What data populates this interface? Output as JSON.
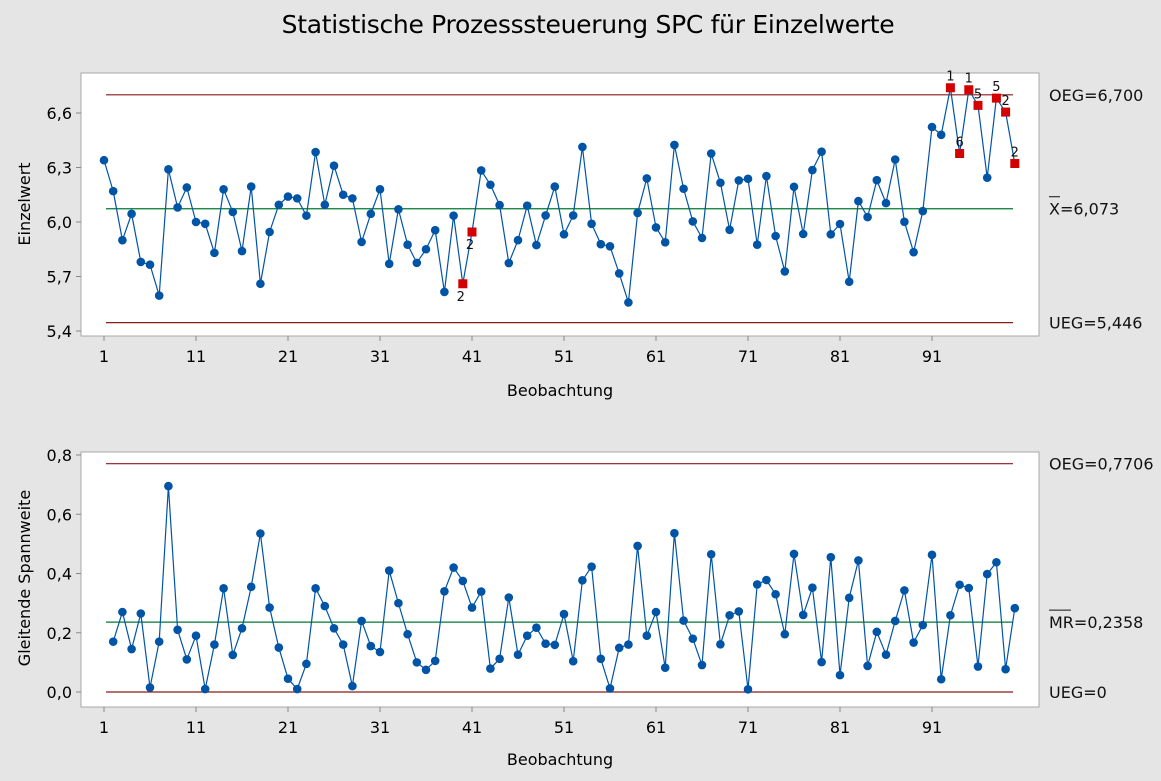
{
  "chart_data": {
    "type": "line",
    "title": "Statistische Prozesssteuerung SPC für Einzelwerte",
    "charts": [
      {
        "name": "individuals",
        "type": "line",
        "xlabel": "Beobachtung",
        "ylabel": "Einzelwert",
        "xlim": [
          1,
          100
        ],
        "ylim": [
          5.4,
          6.7
        ],
        "x_ticks": [
          1,
          11,
          21,
          31,
          41,
          51,
          61,
          71,
          81,
          91
        ],
        "y_ticks": [
          5.4,
          5.7,
          6.0,
          6.3,
          6.6
        ],
        "y_tick_labels": [
          "5,4",
          "5,7",
          "6,0",
          "6,3",
          "6,6"
        ],
        "grid": false,
        "limits": {
          "ucl": 6.7,
          "center": 6.073,
          "lcl": 5.446,
          "ucl_label": "OEG=6,700",
          "center_label": "X=6,073",
          "lcl_label": "UEG=5,446"
        },
        "series": [
          {
            "name": "Einzelwert",
            "x_start": 1,
            "values": [
              6.34,
              6.17,
              5.9,
              6.045,
              5.78,
              5.765,
              5.595,
              6.29,
              6.08,
              6.19,
              6.0,
              5.99,
              5.83,
              6.18,
              6.055,
              5.84,
              6.195,
              5.66,
              5.945,
              6.095,
              6.14,
              6.13,
              6.035,
              6.385,
              6.095,
              6.31,
              6.15,
              6.13,
              5.89,
              6.045,
              6.18,
              5.77,
              6.07,
              5.875,
              5.775,
              5.85,
              5.955,
              5.615,
              6.035,
              5.66,
              5.945,
              6.284,
              6.205,
              6.093,
              5.774,
              5.9,
              6.09,
              5.873,
              6.036,
              6.195,
              5.932,
              6.036,
              6.413,
              5.99,
              5.878,
              5.866,
              5.717,
              5.557,
              6.05,
              6.24,
              5.97,
              5.888,
              6.424,
              6.183,
              6.003,
              5.912,
              6.377,
              6.216,
              5.957,
              6.229,
              6.238,
              5.875,
              6.253,
              5.923,
              5.728,
              6.194,
              5.934,
              6.286,
              6.387,
              5.932,
              5.989,
              5.671,
              6.115,
              6.027,
              6.23,
              6.104,
              6.344,
              6.001,
              5.834,
              6.06,
              6.523,
              6.48,
              6.739,
              6.377,
              6.728,
              6.642,
              6.244,
              6.682,
              6.605,
              6.322
            ]
          }
        ],
        "violations": [
          {
            "obs": 40,
            "test": "2"
          },
          {
            "obs": 41,
            "test": "2"
          },
          {
            "obs": 93,
            "test": "1"
          },
          {
            "obs": 94,
            "test": "6"
          },
          {
            "obs": 95,
            "test": "1"
          },
          {
            "obs": 96,
            "test": "5"
          },
          {
            "obs": 98,
            "test": "5"
          },
          {
            "obs": 99,
            "test": "2"
          },
          {
            "obs": 100,
            "test": "2"
          }
        ]
      },
      {
        "name": "moving-range",
        "type": "line",
        "xlabel": "Beobachtung",
        "ylabel": "Gleitende Spannweite",
        "xlim": [
          1,
          100
        ],
        "ylim": [
          0.0,
          0.8
        ],
        "x_ticks": [
          1,
          11,
          21,
          31,
          41,
          51,
          61,
          71,
          81,
          91
        ],
        "y_ticks": [
          0.0,
          0.2,
          0.4,
          0.6,
          0.8
        ],
        "y_tick_labels": [
          "0,0",
          "0,2",
          "0,4",
          "0,6",
          "0,8"
        ],
        "grid": false,
        "limits": {
          "ucl": 0.7706,
          "center": 0.2358,
          "lcl": 0,
          "ucl_label": "OEG=0,7706",
          "center_label": "MR=0,2358",
          "lcl_label": "UEG=0"
        },
        "series": [
          {
            "name": "Gleitende Spannweite",
            "x_start": 2,
            "values": [
              0.17,
              0.27,
              0.145,
              0.265,
              0.015,
              0.17,
              0.695,
              0.21,
              0.11,
              0.19,
              0.01,
              0.16,
              0.35,
              0.125,
              0.215,
              0.355,
              0.535,
              0.285,
              0.15,
              0.045,
              0.01,
              0.095,
              0.35,
              0.29,
              0.215,
              0.16,
              0.02,
              0.24,
              0.155,
              0.135,
              0.41,
              0.3,
              0.195,
              0.1,
              0.075,
              0.105,
              0.34,
              0.42,
              0.375,
              0.285,
              0.339,
              0.079,
              0.112,
              0.319,
              0.126,
              0.19,
              0.217,
              0.163,
              0.159,
              0.263,
              0.104,
              0.377,
              0.423,
              0.112,
              0.012,
              0.149,
              0.16,
              0.493,
              0.19,
              0.27,
              0.082,
              0.536,
              0.241,
              0.18,
              0.091,
              0.465,
              0.161,
              0.259,
              0.272,
              0.009,
              0.363,
              0.378,
              0.33,
              0.195,
              0.466,
              0.26,
              0.352,
              0.101,
              0.455,
              0.057,
              0.318,
              0.444,
              0.088,
              0.203,
              0.126,
              0.24,
              0.343,
              0.167,
              0.226,
              0.463,
              0.043,
              0.259,
              0.362,
              0.351,
              0.086,
              0.398,
              0.438,
              0.077,
              0.283
            ]
          }
        ],
        "violations": []
      }
    ]
  },
  "colors": {
    "series": "#0054a6",
    "violation": "#d40000",
    "center_line": "#007a33",
    "limit_line": "#8b1a1a",
    "plot_bg": "#ffffff",
    "page_bg": "#e5e5e5"
  }
}
